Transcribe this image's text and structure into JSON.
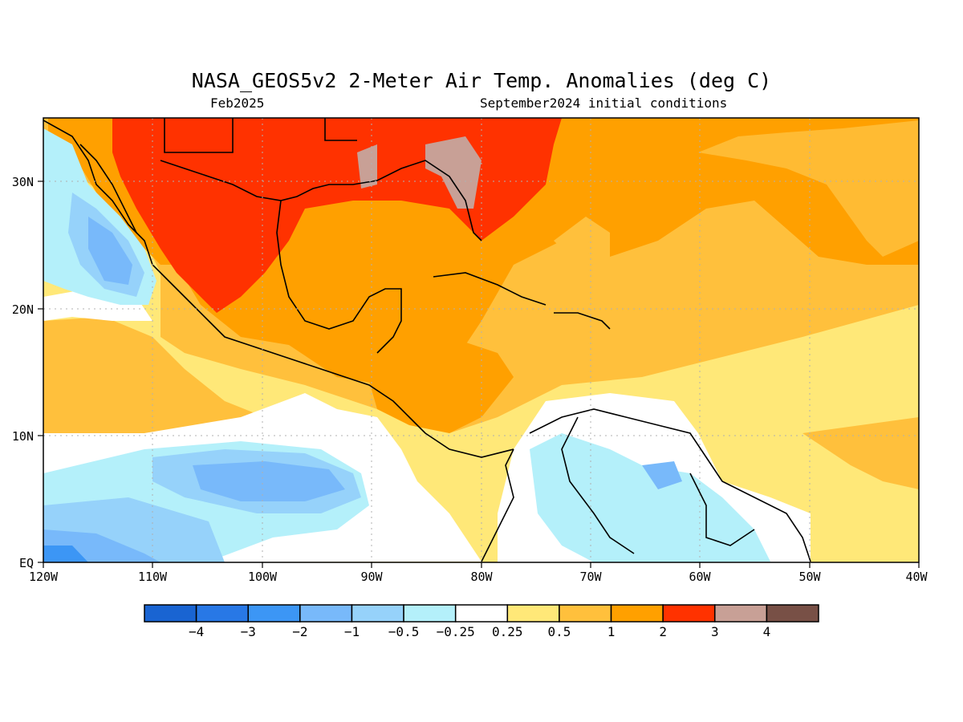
{
  "title": "NASA_GEOS5v2 2-Meter Air Temp. Anomalies (deg C)",
  "subtitle_left": "Feb2025",
  "subtitle_right": "September2024 initial conditions",
  "map": {
    "lon_range": [
      -120,
      -40
    ],
    "lat_range": [
      0,
      35
    ],
    "x_ticks": [
      "120W",
      "110W",
      "100W",
      "90W",
      "80W",
      "70W",
      "60W",
      "50W",
      "40W"
    ],
    "y_ticks": [
      "EQ",
      "10N",
      "20N",
      "30N"
    ],
    "grid": "dotted"
  },
  "colorbar": {
    "colors": [
      "#1964d2",
      "#2878e6",
      "#3c96f5",
      "#78b9fa",
      "#96d2fa",
      "#b4f0fa",
      "#ffffff",
      "#ffe878",
      "#ffc03c",
      "#ffa000",
      "#ff3200",
      "#c8a096",
      "#785046"
    ],
    "labels": [
      "-4",
      "-3",
      "-2",
      "-1",
      "-0.5",
      "-0.25",
      "0.25",
      "0.5",
      "1",
      "2",
      "3",
      "4"
    ]
  }
}
